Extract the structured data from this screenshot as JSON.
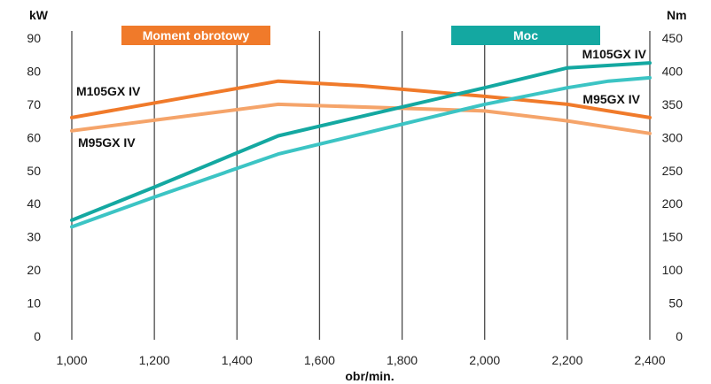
{
  "chart_data": {
    "type": "line",
    "xlabel": "obr/min.",
    "y_left_label": "kW",
    "y_right_label": "Nm",
    "x_ticks": [
      1000,
      1200,
      1400,
      1600,
      1800,
      2000,
      2200,
      2400
    ],
    "x_tick_labels": [
      "1,000",
      "1,200",
      "1,400",
      "1,600",
      "1,800",
      "2,000",
      "2,200",
      "2,400"
    ],
    "xlim": [
      1000,
      2400
    ],
    "y_left_lim": [
      0,
      90
    ],
    "y_left_ticks": [
      0,
      10,
      20,
      30,
      40,
      50,
      60,
      70,
      80,
      90
    ],
    "y_right_lim": [
      0,
      450
    ],
    "y_right_ticks": [
      0,
      50,
      100,
      150,
      200,
      250,
      300,
      350,
      400,
      450
    ],
    "grid": "vertical",
    "legend": [
      {
        "label": "Moment obrotowy",
        "color": "#f07a2a",
        "placement": "top-left"
      },
      {
        "label": "Moc",
        "color": "#14a8a1",
        "placement": "top-right"
      }
    ],
    "series": [
      {
        "name": "M105GX IV",
        "group": "Moment obrotowy",
        "axis": "right",
        "color": "#f07a2a",
        "points": [
          [
            1000,
            330
          ],
          [
            1500,
            385
          ],
          [
            1700,
            378
          ],
          [
            2000,
            362
          ],
          [
            2200,
            350
          ],
          [
            2400,
            330
          ]
        ]
      },
      {
        "name": "M95GX IV",
        "group": "Moment obrotowy",
        "axis": "right",
        "color": "#f5a46a",
        "points": [
          [
            1000,
            310
          ],
          [
            1500,
            350
          ],
          [
            2000,
            340
          ],
          [
            2200,
            325
          ],
          [
            2400,
            306
          ]
        ]
      },
      {
        "name": "M105GX IV",
        "group": "Moc",
        "axis": "left",
        "color": "#14a8a1",
        "points": [
          [
            1000,
            35
          ],
          [
            1200,
            45
          ],
          [
            1500,
            60.5
          ],
          [
            2000,
            75
          ],
          [
            2200,
            81
          ],
          [
            2400,
            82.5
          ]
        ]
      },
      {
        "name": "M95GX IV",
        "group": "Moc",
        "axis": "left",
        "color": "#3cc4c4",
        "points": [
          [
            1000,
            33
          ],
          [
            1200,
            42
          ],
          [
            1500,
            55
          ],
          [
            2000,
            70
          ],
          [
            2200,
            75
          ],
          [
            2300,
            77
          ],
          [
            2400,
            78
          ]
        ]
      }
    ]
  }
}
